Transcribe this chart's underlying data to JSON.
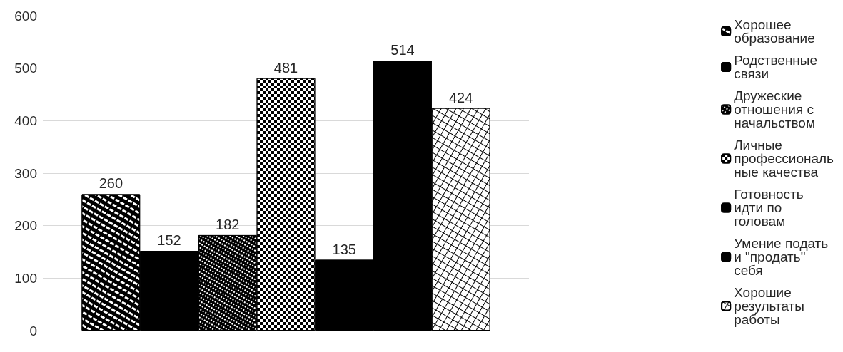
{
  "chart_data": {
    "type": "bar",
    "categories": [
      null
    ],
    "series": [
      {
        "name": "Хорошее образование",
        "color": "#000000",
        "values": [
          260
        ]
      },
      {
        "name": "Родственные связи",
        "color": "#000000",
        "values": [
          152
        ]
      },
      {
        "name": "Дружеские отношения с начальством",
        "color": "#000000",
        "values": [
          182
        ]
      },
      {
        "name": "Личные профессиональные качества",
        "color": "#000000",
        "values": [
          481
        ]
      },
      {
        "name": "Готовность идти по головам",
        "color": "#000000",
        "values": [
          135
        ]
      },
      {
        "name": "Умение подать и \"продать\" себя",
        "color": "#000000",
        "values": [
          514
        ]
      },
      {
        "name": "Хорошие результаты работы",
        "color": "#000000",
        "values": [
          424
        ]
      }
    ],
    "ylim": [
      0,
      600
    ],
    "yticks": [
      0,
      100,
      200,
      300,
      400,
      500,
      600
    ],
    "grid": "y",
    "legend": "right",
    "data_labels": true
  }
}
